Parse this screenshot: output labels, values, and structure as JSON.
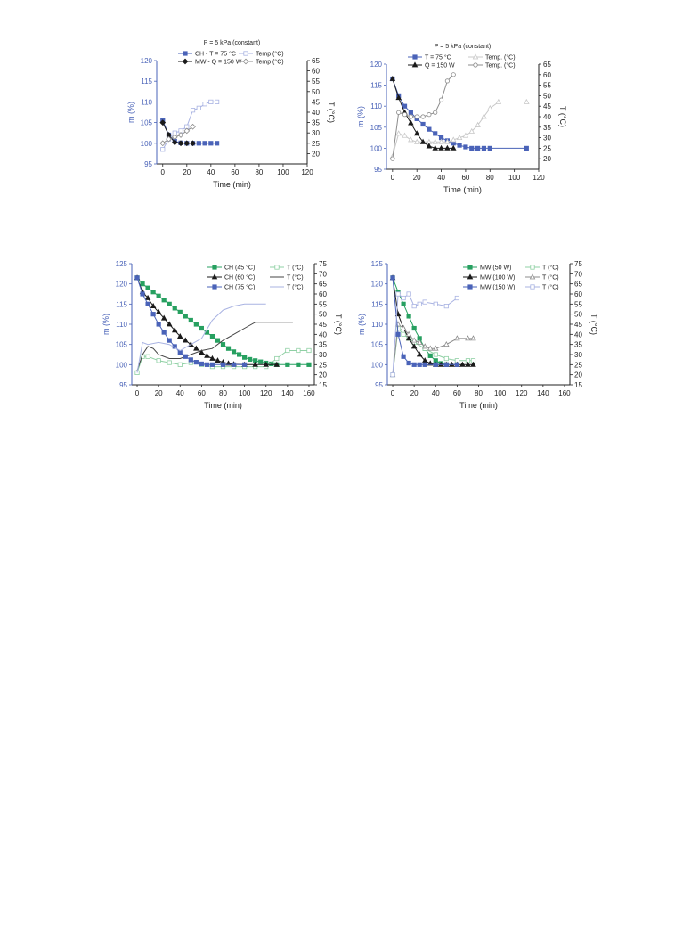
{
  "colors": {
    "blue": "#4a63b8",
    "light_blue": "#a9b3e2",
    "black": "#1a1a1a",
    "gray": "#8c8c8c",
    "light_gray": "#c8c8c8",
    "green": "#27a060",
    "light_green": "#8fd0a4",
    "axis_left": "#4a63b8",
    "axis_right": "#222222"
  },
  "chart_data": [
    {
      "type": "line",
      "title": "P = 5 kPa (constant)",
      "xlabel": "Time (min)",
      "ylabel": "m (%)",
      "y2label": "T (°C)",
      "xlim": [
        -5,
        120
      ],
      "xticks": [
        0,
        20,
        40,
        60,
        80,
        100,
        120
      ],
      "ylim": [
        95,
        120
      ],
      "yticks": [
        95,
        100,
        105,
        110,
        115,
        120
      ],
      "y2lim": [
        15,
        65
      ],
      "y2ticks": [
        20,
        25,
        30,
        35,
        40,
        45,
        50,
        55,
        60,
        65
      ],
      "legend_position": "top",
      "series": [
        {
          "name": "CH - T = 75 °C",
          "axis": "left",
          "color": "#4a63b8",
          "marker": "square",
          "filled": true,
          "x": [
            0,
            5,
            10,
            15,
            20,
            25,
            30,
            35,
            40,
            45
          ],
          "y": [
            105.5,
            102,
            100.5,
            100.1,
            100,
            100,
            100,
            100,
            100,
            100
          ]
        },
        {
          "name": "Temp (°C)",
          "axis": "right",
          "color": "#a9b3e2",
          "marker": "square",
          "filled": false,
          "x": [
            0,
            5,
            10,
            15,
            20,
            25,
            30,
            35,
            40,
            45
          ],
          "y": [
            22,
            27,
            30,
            31,
            33,
            41,
            42,
            44,
            45,
            45
          ]
        },
        {
          "name": "MW - Q = 150 W",
          "axis": "left",
          "color": "#1a1a1a",
          "marker": "diamond",
          "filled": true,
          "x": [
            0,
            5,
            10,
            15,
            20,
            25
          ],
          "y": [
            105,
            102,
            100.2,
            100,
            100,
            100
          ]
        },
        {
          "name": "Temp (°C)",
          "axis": "right",
          "color": "#8c8c8c",
          "marker": "diamond",
          "filled": false,
          "x": [
            0,
            5,
            10,
            15,
            20,
            25
          ],
          "y": [
            25,
            27,
            28,
            29,
            31,
            33
          ]
        }
      ]
    },
    {
      "type": "line",
      "title": "P = 5 kPa (constant)",
      "xlabel": "Time (min)",
      "ylabel": "m (%)",
      "y2label": "T (°C)",
      "xlim": [
        -5,
        120
      ],
      "xticks": [
        0,
        20,
        40,
        60,
        80,
        100,
        120
      ],
      "ylim": [
        95,
        120
      ],
      "yticks": [
        95,
        100,
        105,
        110,
        115,
        120
      ],
      "y2lim": [
        15,
        65
      ],
      "y2ticks": [
        20,
        25,
        30,
        35,
        40,
        45,
        50,
        55,
        60,
        65
      ],
      "legend_position": "top",
      "series": [
        {
          "name": "T = 75 °C",
          "axis": "left",
          "color": "#4a63b8",
          "marker": "square",
          "filled": true,
          "x": [
            0,
            5,
            10,
            15,
            20,
            25,
            30,
            35,
            40,
            45,
            50,
            55,
            60,
            65,
            70,
            75,
            80,
            110
          ],
          "y": [
            116.5,
            112.5,
            110,
            108.5,
            107,
            105.7,
            104.5,
            103.5,
            102.5,
            101.8,
            101.2,
            100.7,
            100.3,
            100,
            100,
            100,
            100,
            100
          ]
        },
        {
          "name": "Temp. (°C)",
          "axis": "right",
          "color": "#c8c8c8",
          "marker": "triangle",
          "filled": false,
          "x": [
            0,
            5,
            10,
            15,
            20,
            25,
            30,
            35,
            40,
            45,
            50,
            55,
            60,
            65,
            70,
            75,
            80,
            87,
            110
          ],
          "y": [
            21,
            32,
            31,
            29,
            28,
            28,
            28,
            28,
            28,
            28,
            29,
            30,
            31,
            33,
            36,
            40,
            44,
            47,
            47
          ]
        },
        {
          "name": "Q = 150 W",
          "axis": "left",
          "color": "#1a1a1a",
          "marker": "triangle",
          "filled": true,
          "x": [
            0,
            5,
            10,
            15,
            20,
            25,
            30,
            35,
            40,
            45,
            50
          ],
          "y": [
            116.5,
            112,
            108.5,
            106,
            103.5,
            101.5,
            100.5,
            100,
            100,
            100,
            100
          ]
        },
        {
          "name": "Temp. (°C)",
          "axis": "right",
          "color": "#8c8c8c",
          "marker": "circle",
          "filled": false,
          "x": [
            0,
            5,
            10,
            15,
            20,
            25,
            30,
            35,
            40,
            45,
            50
          ],
          "y": [
            20,
            42,
            41,
            40,
            40,
            40,
            41,
            42,
            48,
            57,
            60
          ]
        }
      ]
    },
    {
      "type": "line",
      "title": "",
      "xlabel": "Time (min)",
      "ylabel": "m (%)",
      "y2label": "T (°C)",
      "xlim": [
        -5,
        165
      ],
      "xticks": [
        0,
        20,
        40,
        60,
        80,
        100,
        120,
        140,
        160
      ],
      "ylim": [
        95,
        125
      ],
      "yticks": [
        95,
        100,
        105,
        110,
        115,
        120,
        125
      ],
      "y2lim": [
        15,
        75
      ],
      "y2ticks": [
        15,
        20,
        25,
        30,
        35,
        40,
        45,
        50,
        55,
        60,
        65,
        70,
        75
      ],
      "legend_position": "top-right",
      "series": [
        {
          "name": "CH (45 °C)",
          "axis": "left",
          "color": "#27a060",
          "marker": "square",
          "filled": true,
          "x": [
            0,
            5,
            10,
            15,
            20,
            25,
            30,
            35,
            40,
            45,
            50,
            55,
            60,
            65,
            70,
            75,
            80,
            85,
            90,
            95,
            100,
            105,
            110,
            115,
            120,
            125,
            130,
            140,
            150,
            160
          ],
          "y": [
            121.5,
            120,
            119,
            118,
            117,
            116,
            115,
            114,
            113,
            112,
            111,
            110,
            109,
            108,
            107,
            106,
            105,
            104,
            103.2,
            102.5,
            101.8,
            101.3,
            101,
            100.7,
            100.4,
            100.2,
            100,
            100,
            100,
            100
          ]
        },
        {
          "name": "T (°C)",
          "axis": "right",
          "color": "#8fd0a4",
          "marker": "square",
          "filled": false,
          "x": [
            0,
            5,
            10,
            20,
            30,
            40,
            50,
            60,
            70,
            80,
            90,
            100,
            110,
            120,
            130,
            140,
            150,
            160
          ],
          "y": [
            21,
            29,
            29,
            27,
            26,
            25,
            26,
            25,
            24,
            24,
            24,
            24,
            24,
            24,
            28,
            32,
            32,
            32
          ]
        },
        {
          "name": "CH (60 °C)",
          "axis": "left",
          "color": "#1a1a1a",
          "marker": "triangle",
          "filled": true,
          "x": [
            0,
            5,
            10,
            15,
            20,
            25,
            30,
            35,
            40,
            45,
            50,
            55,
            60,
            65,
            70,
            75,
            80,
            85,
            90,
            100,
            110,
            120,
            130
          ],
          "y": [
            121.5,
            118,
            116.5,
            114.5,
            113,
            111.5,
            110,
            108.5,
            107,
            106,
            105,
            104,
            103,
            102.2,
            101.5,
            101,
            100.6,
            100.3,
            100.1,
            100,
            100,
            100,
            100
          ]
        },
        {
          "name": "T (°C)",
          "axis": "right",
          "color": "#444444",
          "marker": "none",
          "filled": false,
          "x": [
            0,
            5,
            10,
            15,
            20,
            30,
            40,
            50,
            60,
            70,
            80,
            90,
            100,
            110,
            120,
            145
          ],
          "y": [
            22,
            30,
            34,
            33,
            30,
            28,
            28,
            30,
            32,
            33,
            37,
            40,
            43,
            46,
            46,
            46
          ]
        },
        {
          "name": "CH (75 °C)",
          "axis": "left",
          "color": "#4a63b8",
          "marker": "square",
          "filled": true,
          "x": [
            0,
            5,
            10,
            15,
            20,
            25,
            30,
            35,
            40,
            45,
            50,
            55,
            60,
            65,
            70,
            80,
            90,
            100
          ],
          "y": [
            121.5,
            117.5,
            115,
            112.5,
            110,
            108,
            106,
            104.5,
            103,
            102,
            101.2,
            100.6,
            100.2,
            100,
            100,
            100,
            100,
            100
          ]
        },
        {
          "name": "T (°C)",
          "axis": "right",
          "color": "#a9b3e2",
          "marker": "none",
          "filled": false,
          "x": [
            0,
            5,
            10,
            20,
            30,
            40,
            50,
            60,
            70,
            80,
            90,
            100,
            120
          ],
          "y": [
            21,
            36,
            35,
            36,
            35,
            32,
            35,
            38,
            47,
            52,
            54,
            55,
            55
          ]
        }
      ]
    },
    {
      "type": "line",
      "title": "",
      "xlabel": "Time (min)",
      "ylabel": "m (%)",
      "y2label": "T (°C)",
      "xlim": [
        -5,
        165
      ],
      "xticks": [
        0,
        20,
        40,
        60,
        80,
        100,
        120,
        140,
        160
      ],
      "ylim": [
        95,
        125
      ],
      "yticks": [
        95,
        100,
        105,
        110,
        115,
        120,
        125
      ],
      "y2lim": [
        15,
        75
      ],
      "y2ticks": [
        15,
        20,
        25,
        30,
        35,
        40,
        45,
        50,
        55,
        60,
        65,
        70,
        75
      ],
      "legend_position": "top-right",
      "series": [
        {
          "name": "MW (50 W)",
          "axis": "left",
          "color": "#27a060",
          "marker": "square",
          "filled": true,
          "x": [
            0,
            5,
            10,
            15,
            20,
            25,
            30,
            35,
            40,
            45,
            50
          ],
          "y": [
            121.5,
            118,
            115,
            112,
            109,
            106.5,
            104,
            102.2,
            101,
            100.3,
            100
          ]
        },
        {
          "name": "T (°C)",
          "axis": "right",
          "color": "#8fd0a4",
          "marker": "square",
          "filled": false,
          "x": [
            0,
            5,
            10,
            15,
            20,
            30,
            40,
            50,
            60,
            70,
            75
          ],
          "y": [
            20,
            43,
            40,
            38,
            36,
            33,
            30,
            28,
            27,
            27,
            27
          ]
        },
        {
          "name": "MW (100 W)",
          "axis": "left",
          "color": "#1a1a1a",
          "marker": "triangle",
          "filled": true,
          "x": [
            0,
            5,
            10,
            15,
            20,
            25,
            30,
            35,
            40,
            45,
            50,
            55,
            60,
            65,
            70,
            75
          ],
          "y": [
            121.5,
            112.5,
            109,
            106.5,
            104.5,
            102.5,
            101,
            100.3,
            100,
            100,
            100,
            100,
            100,
            100,
            100,
            100
          ]
        },
        {
          "name": "T (°C)",
          "axis": "right",
          "color": "#8c8c8c",
          "marker": "triangle",
          "filled": false,
          "x": [
            0,
            5,
            10,
            15,
            20,
            25,
            30,
            35,
            40,
            50,
            60,
            70,
            75
          ],
          "y": [
            20,
            45,
            43,
            40,
            37,
            36,
            34,
            33,
            33,
            35,
            38,
            38,
            38
          ]
        },
        {
          "name": "MW (150 W)",
          "axis": "left",
          "color": "#4a63b8",
          "marker": "square",
          "filled": true,
          "x": [
            0,
            5,
            10,
            15,
            20,
            25,
            30,
            40,
            50,
            60
          ],
          "y": [
            121.5,
            107.5,
            102,
            100.4,
            100,
            100,
            100,
            100,
            100,
            100
          ]
        },
        {
          "name": "T (°C)",
          "axis": "right",
          "color": "#a9b3e2",
          "marker": "square",
          "filled": false,
          "x": [
            0,
            5,
            10,
            15,
            20,
            25,
            30,
            40,
            50,
            60
          ],
          "y": [
            20,
            60,
            58,
            60,
            54,
            55,
            56,
            55,
            54,
            58
          ]
        }
      ]
    }
  ]
}
